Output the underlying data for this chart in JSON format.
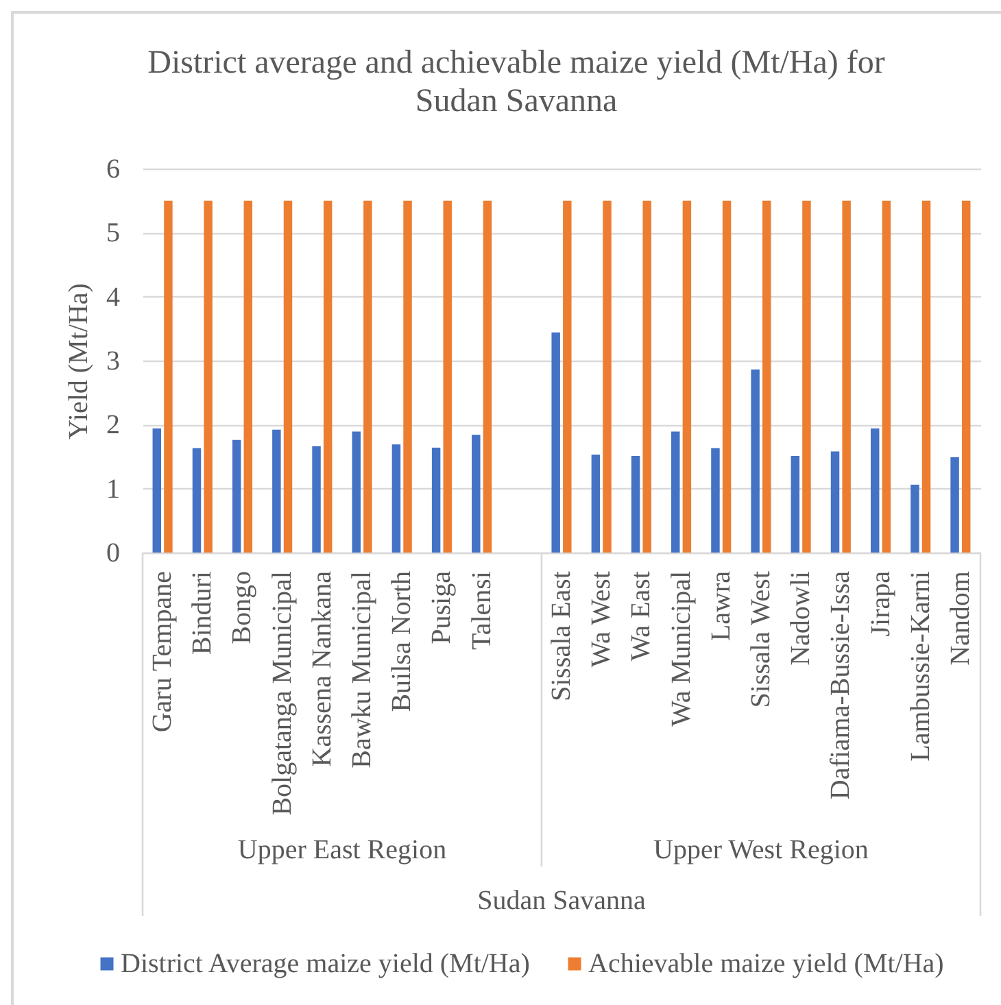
{
  "chart_data": {
    "type": "bar",
    "title": "District average and achievable maize yield (Mt/Ha) for Sudan Savanna",
    "ylabel": "Yield (Mt/Ha)",
    "categories": [
      "Garu Tempane",
      "Binduri",
      "Bongo",
      "Bolgatanga Municipal",
      "Kassena Nankana",
      "Bawku Municipal",
      "Builsa North",
      "Pusiga",
      "Talensi",
      null,
      "Sissala East",
      "Wa West",
      "Wa East",
      "Wa Municipal",
      "Lawra",
      "Sissala West",
      "Nadowli",
      "Dafiama-Bussie-Issa",
      "Jirapa",
      "Lambussie-Karni",
      "Nandom"
    ],
    "series": [
      {
        "name": "District Average maize yield (Mt/Ha)",
        "color": "#4472c4",
        "values": [
          1.94,
          1.63,
          1.76,
          1.92,
          1.66,
          1.89,
          1.69,
          1.64,
          1.84,
          null,
          3.44,
          1.53,
          1.51,
          1.89,
          1.63,
          2.86,
          1.51,
          1.58,
          1.94,
          1.06,
          1.49
        ]
      },
      {
        "name": "Achievable maize yield (Mt/Ha)",
        "color": "#ed7d31",
        "values": [
          5.5,
          5.5,
          5.5,
          5.5,
          5.5,
          5.5,
          5.5,
          5.5,
          5.5,
          null,
          5.5,
          5.5,
          5.5,
          5.5,
          5.5,
          5.5,
          5.5,
          5.5,
          5.5,
          5.5,
          5.5
        ]
      }
    ],
    "ylim": [
      0,
      6
    ],
    "yticks": [
      0,
      1,
      2,
      3,
      4,
      5,
      6
    ],
    "grid": "y",
    "legend": "bottom",
    "annotations": [
      "Upper East Region",
      "Upper West Region",
      "Sudan Savanna"
    ]
  }
}
